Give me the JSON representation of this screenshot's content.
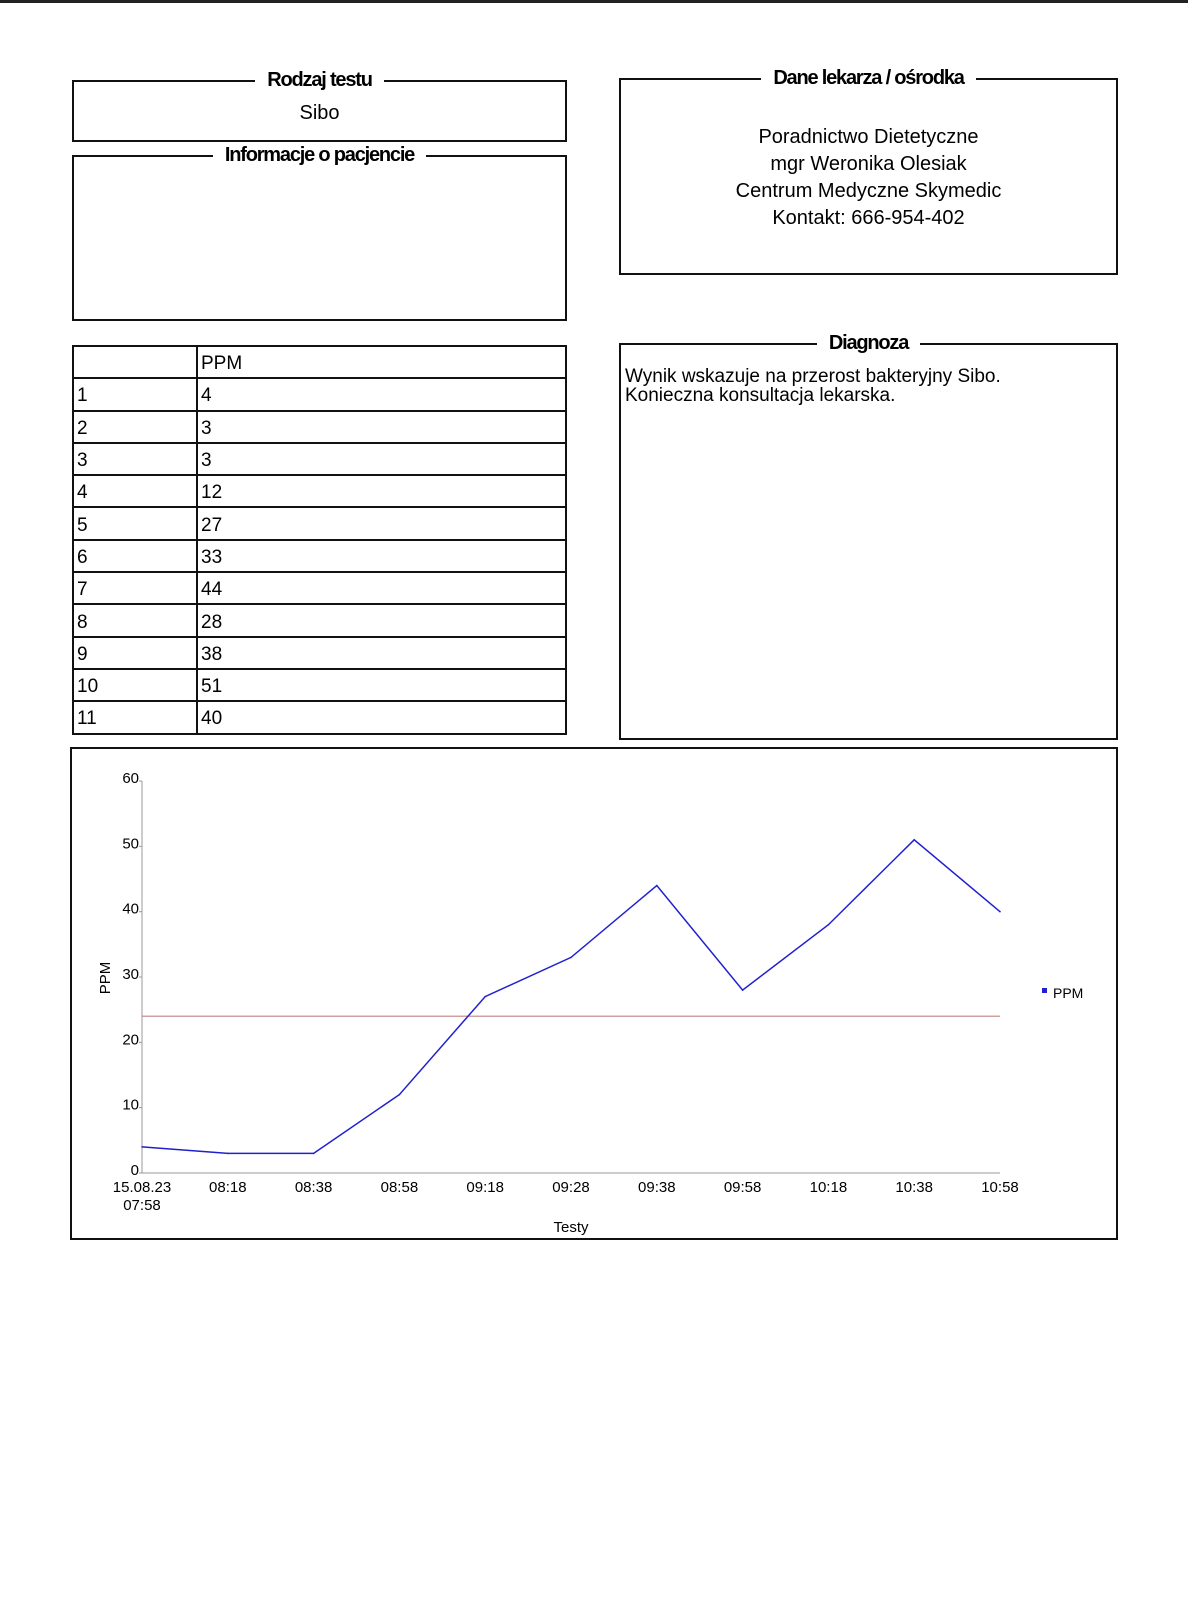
{
  "test_type": {
    "title": "Rodzaj testu",
    "value": "Sibo"
  },
  "patient": {
    "title": "Informacje o pacjencie"
  },
  "doctor": {
    "title": "Dane lekarza / ośrodka",
    "lines": [
      "Poradnictwo Dietetyczne",
      "mgr Weronika Olesiak",
      "Centrum Medyczne Skymedic",
      "Kontakt: 666-954-402"
    ]
  },
  "table": {
    "header": [
      "",
      "PPM"
    ],
    "rows": [
      [
        "1",
        "4"
      ],
      [
        "2",
        "3"
      ],
      [
        "3",
        "3"
      ],
      [
        "4",
        "12"
      ],
      [
        "5",
        "27"
      ],
      [
        "6",
        "33"
      ],
      [
        "7",
        "44"
      ],
      [
        "8",
        "28"
      ],
      [
        "9",
        "38"
      ],
      [
        "10",
        "51"
      ],
      [
        "11",
        "40"
      ]
    ]
  },
  "diagnosis": {
    "title": "Diagnoza",
    "lines": [
      "Wynik wskazuje na przerost bakteryjny Sibo.",
      "Konieczna konsultacja lekarska."
    ]
  },
  "chart_data": {
    "type": "line",
    "xlabel": "Testy",
    "ylabel": "PPM",
    "categories": [
      "15.08.23\n07:58",
      "08:18",
      "08:38",
      "08:58",
      "09:18",
      "09:28",
      "09:38",
      "09:58",
      "10:18",
      "10:38",
      "10:58"
    ],
    "series": [
      {
        "name": "PPM",
        "values": [
          4,
          3,
          3,
          12,
          27,
          33,
          44,
          28,
          38,
          51,
          40
        ],
        "color": "#2020d0"
      }
    ],
    "threshold": {
      "value": 24,
      "color": "#c08080"
    },
    "ylim": [
      0,
      60
    ],
    "yticks": [
      0,
      10,
      20,
      30,
      40,
      50,
      60
    ],
    "grid": false,
    "legend": "right"
  }
}
